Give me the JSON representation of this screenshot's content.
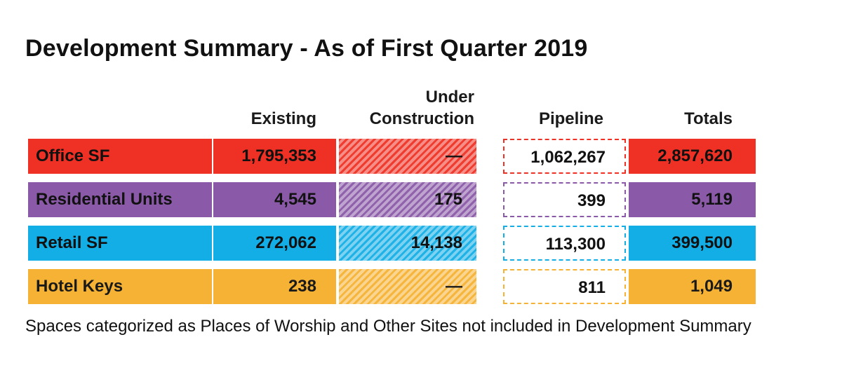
{
  "title": "Development Summary - As of First Quarter 2019",
  "footnote": "Spaces categorized as Places of Worship and Other Sites not included in Development Summary",
  "chart_data": {
    "type": "table",
    "title": "Development Summary - As of First Quarter 2019",
    "columns": [
      {
        "line1": "",
        "line2": "Existing"
      },
      {
        "line1": "Under",
        "line2": "Construction"
      },
      {
        "line1": "",
        "line2": "Pipeline"
      },
      {
        "line1": "",
        "line2": "Totals"
      }
    ],
    "rows": [
      {
        "label": "Office SF",
        "existing": "1,795,353",
        "under": "—",
        "pipeline": "1,062,267",
        "total": "2,857,620",
        "color": "#ee3124"
      },
      {
        "label": "Residential Units",
        "existing": "4,545",
        "under": "175",
        "pipeline": "399",
        "total": "5,119",
        "color": "#8a5aa8"
      },
      {
        "label": "Retail SF",
        "existing": "272,062",
        "under": "14,138",
        "pipeline": "113,300",
        "total": "399,500",
        "color": "#13aee6"
      },
      {
        "label": "Hotel Keys",
        "existing": "238",
        "under": "—",
        "pipeline": "811",
        "total": "1,049",
        "color": "#f6b234"
      }
    ]
  }
}
